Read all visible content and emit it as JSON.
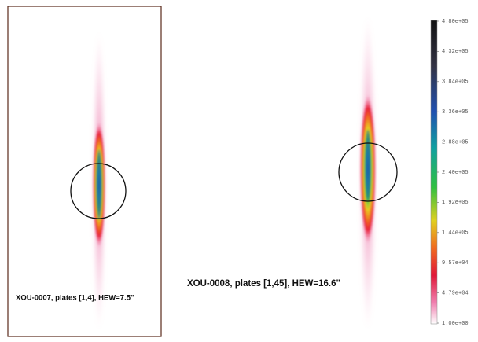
{
  "panels": [
    {
      "caption": "XOU-0007, plates [1,4], HEW=7.5\""
    },
    {
      "caption": "XOU-0008, plates [1,45], HEW=16.6\""
    }
  ],
  "colorbar": {
    "labels": [
      "4.80e+05",
      "4.32e+05",
      "3.84e+05",
      "3.36e+05",
      "2.88e+05",
      "2.40e+05",
      "1.92e+05",
      "1.44e+05",
      "9.57e+04",
      "4.79e+04",
      "1.00e+00"
    ]
  }
}
